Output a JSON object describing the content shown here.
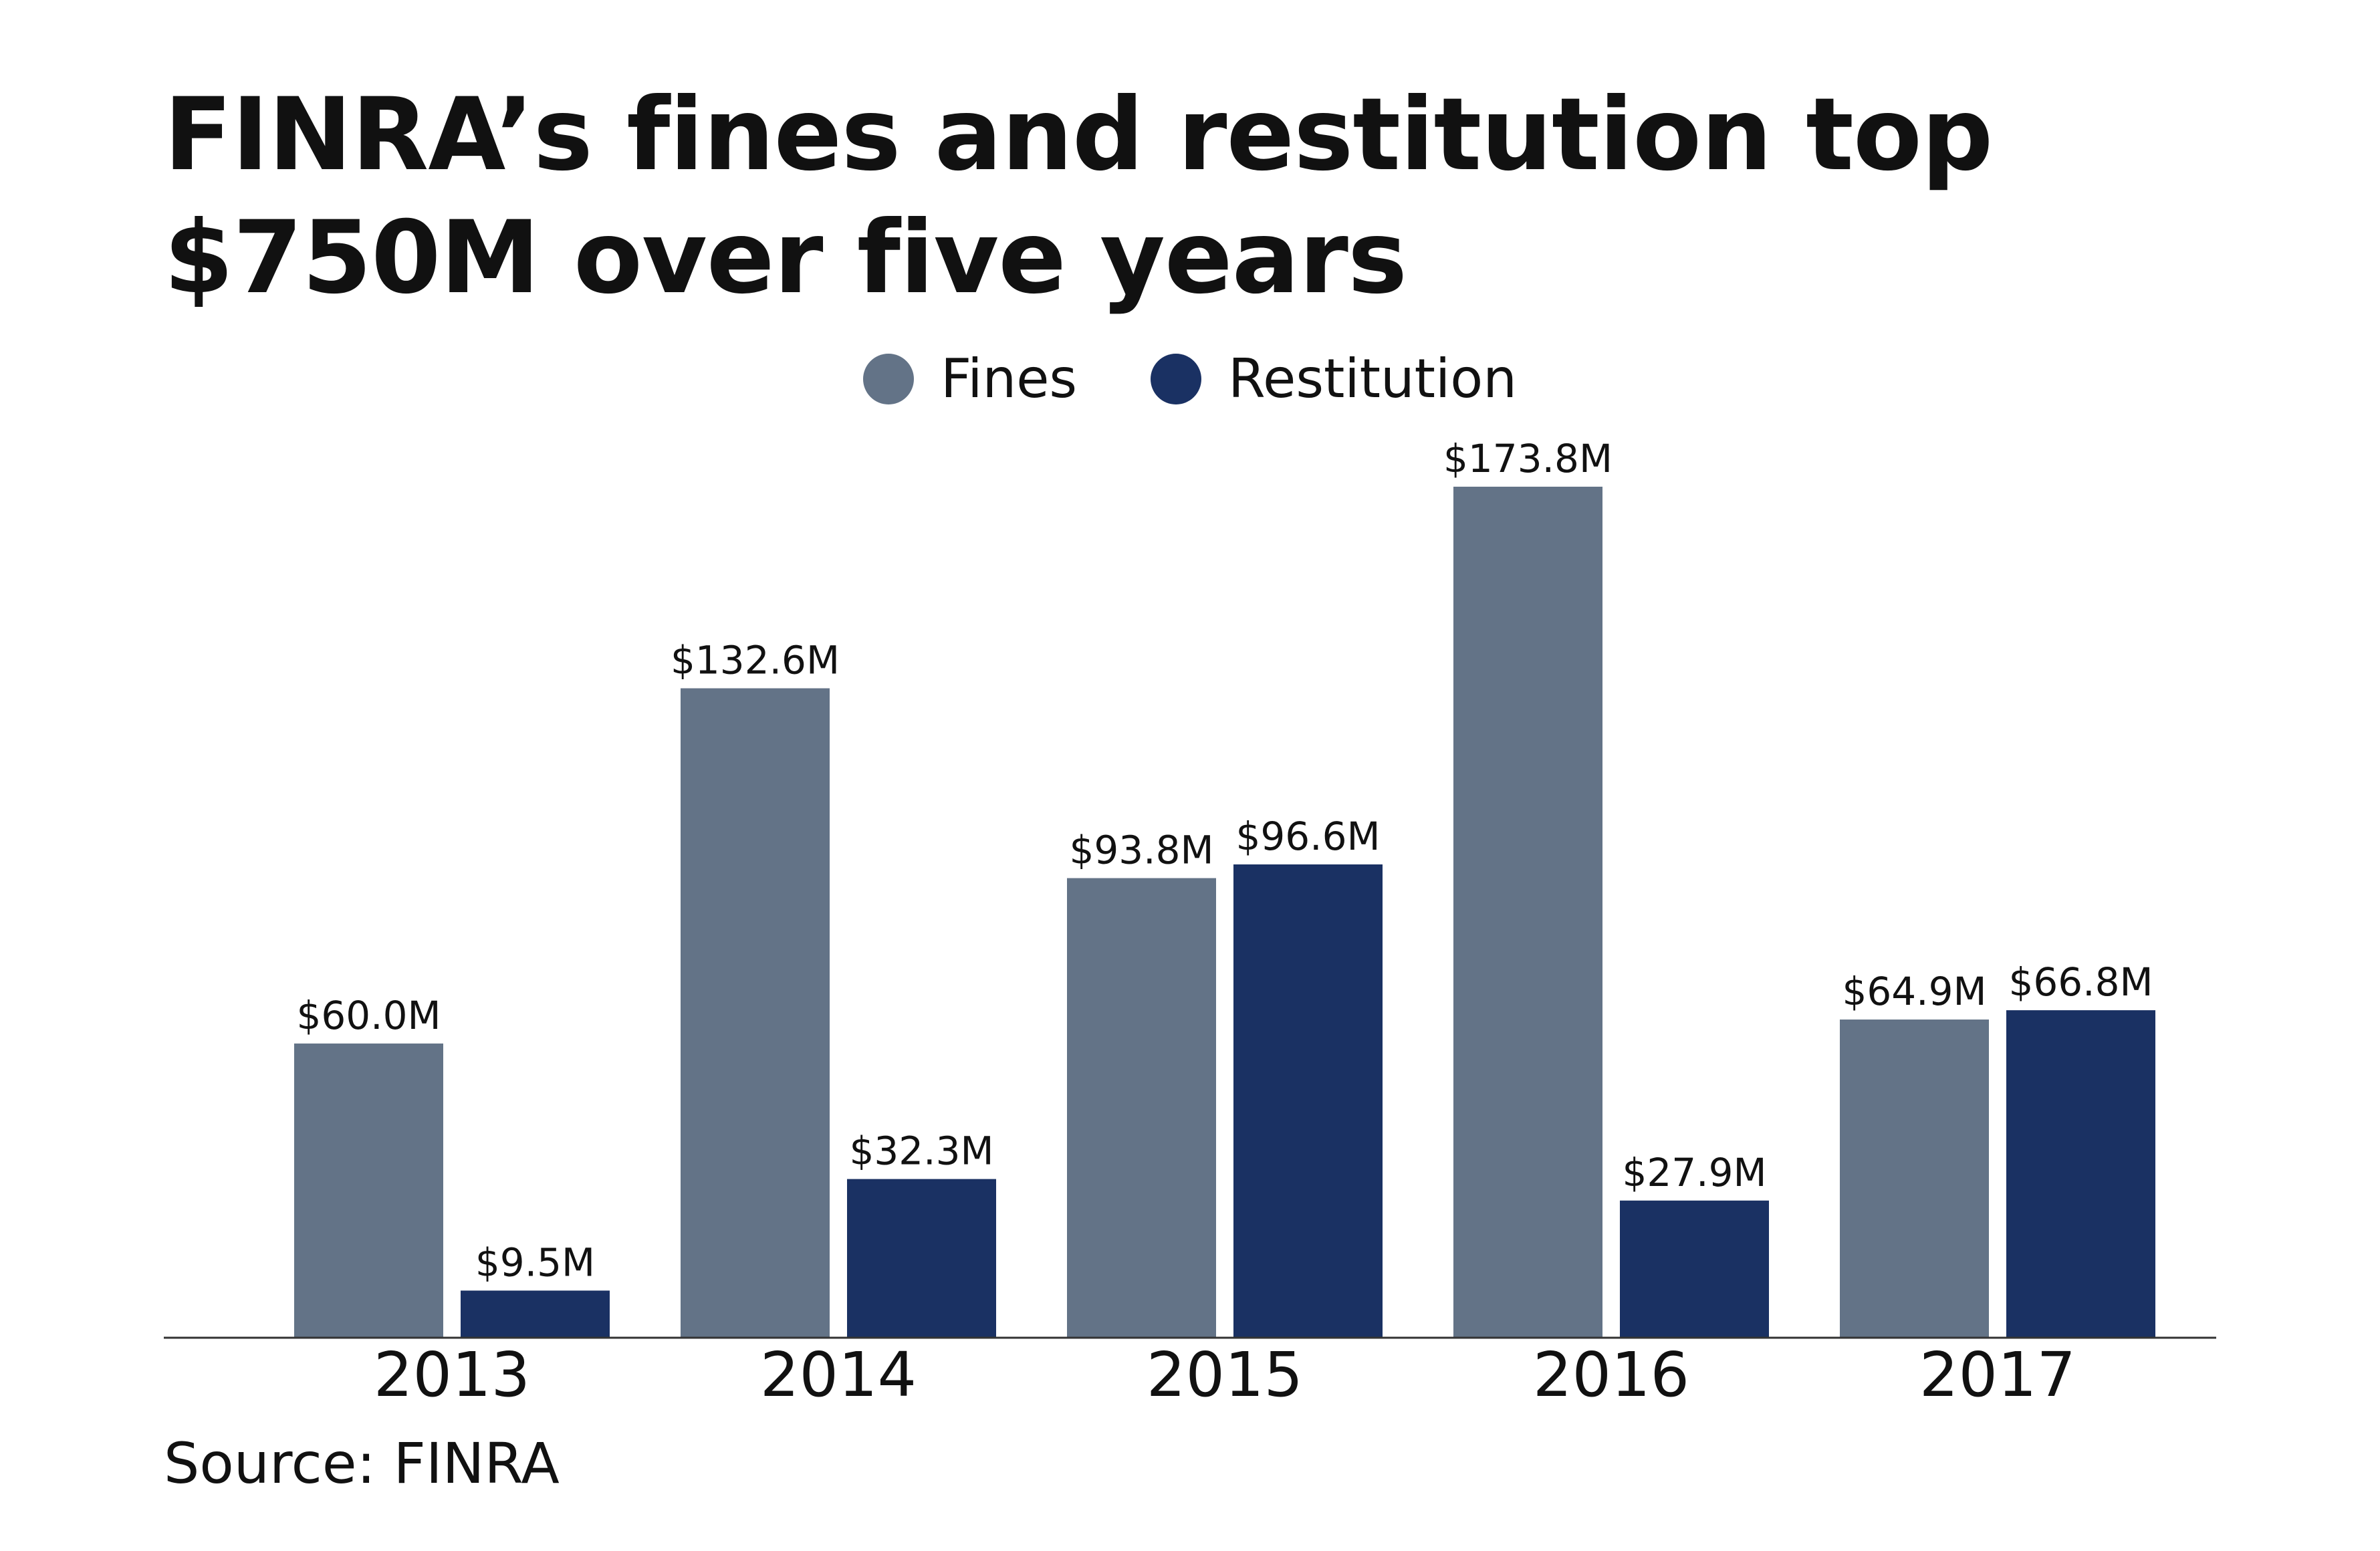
{
  "chart_data": {
    "type": "bar",
    "title": "FINRA’s fines and restitution top $750M over five years",
    "categories": [
      "2013",
      "2014",
      "2015",
      "2016",
      "2017"
    ],
    "series": [
      {
        "name": "Fines",
        "color": "#637387",
        "values": [
          60.0,
          132.6,
          93.8,
          173.8,
          64.9
        ],
        "labels": [
          "$60.0M",
          "$132.6M",
          "$93.8M",
          "$173.8M",
          "$64.9M"
        ]
      },
      {
        "name": "Restitution",
        "color": "#1a3163",
        "values": [
          9.5,
          32.3,
          96.6,
          27.9,
          66.8
        ],
        "labels": [
          "$9.5M",
          "$32.3M",
          "$96.6M",
          "$27.9M",
          "$66.8M"
        ]
      }
    ],
    "xlabel": "",
    "ylabel": "",
    "ylim": [
      0,
      173.8
    ],
    "grid": false,
    "legend": "top-center",
    "source": "Source: FINRA"
  }
}
